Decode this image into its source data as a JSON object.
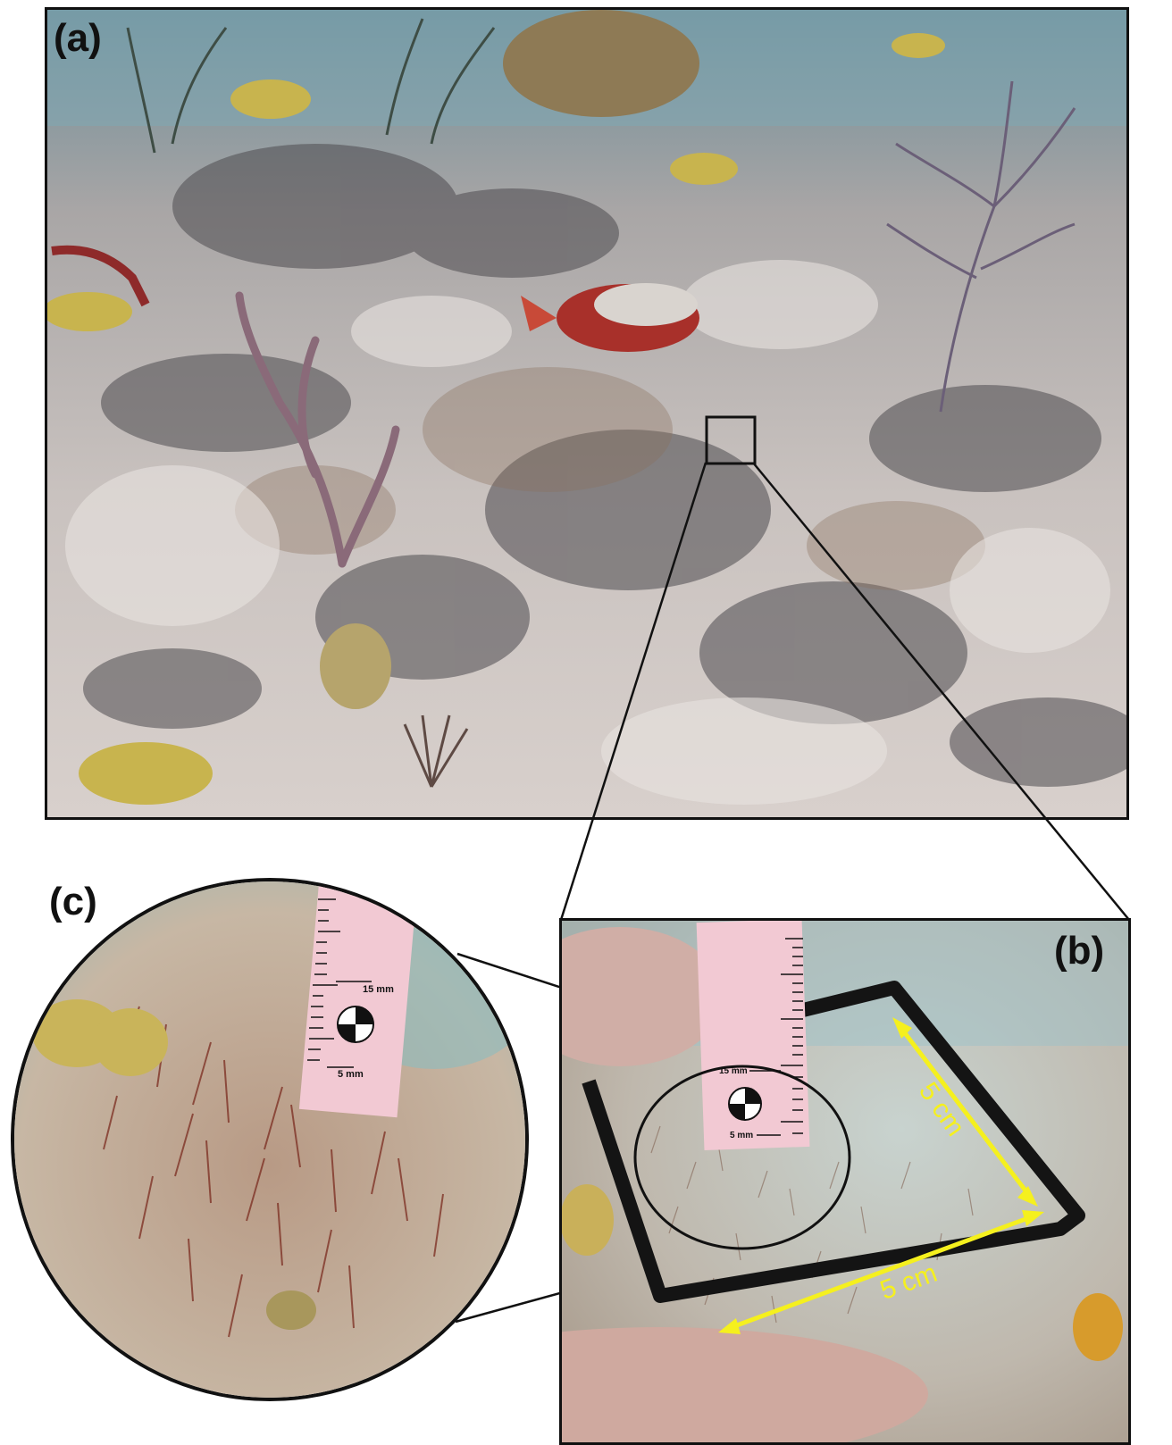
{
  "figure": {
    "panels": [
      {
        "id": "a",
        "label": "(a)",
        "description_icon": "reef-scene-photo"
      },
      {
        "id": "b",
        "label": "(b)",
        "description_icon": "quadrat-closeup-photo"
      },
      {
        "id": "c",
        "label": "(c)",
        "description_icon": "turf-algae-magnified-photo"
      }
    ],
    "scale_bar": {
      "label_15": "15 mm",
      "label_5": "5 mm"
    },
    "quadrat": {
      "side_label_1": "5 cm",
      "side_label_2": "5 cm"
    },
    "colors": {
      "frame": "#111111",
      "arrow": "#f5f01e",
      "ruler": "#f4c9d2",
      "sand": "#d9d3c8",
      "water": "#7fb3c4"
    }
  }
}
